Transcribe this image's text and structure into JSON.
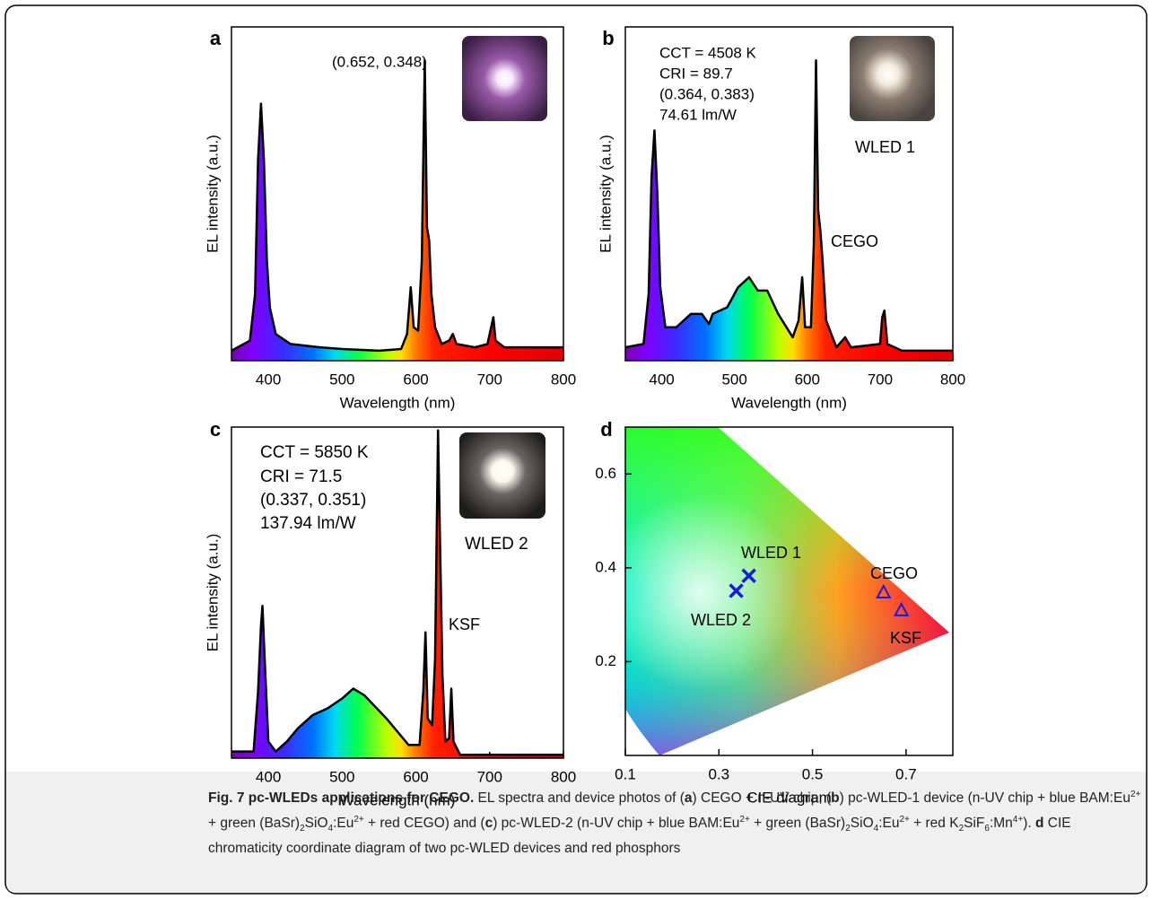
{
  "chart_data": [
    {
      "type": "line",
      "panel": "a",
      "xlabel": "Wavelength (nm)",
      "ylabel": "EL intensity (a.u.)",
      "xlim": [
        350,
        800
      ],
      "xticks": [
        400,
        500,
        600,
        700,
        800
      ],
      "ylim": [
        0,
        1
      ],
      "color": "#000000",
      "annotations": [
        "(0.652, 0.348)"
      ],
      "x": [
        350,
        375,
        382,
        386,
        390,
        394,
        398,
        402,
        410,
        430,
        470,
        500,
        550,
        580,
        588,
        593,
        597,
        603,
        608,
        612,
        615,
        618,
        621,
        626,
        635,
        645,
        650,
        655,
        680,
        697,
        702,
        705,
        708,
        720,
        800
      ],
      "values": [
        0.03,
        0.06,
        0.2,
        0.6,
        0.77,
        0.6,
        0.3,
        0.16,
        0.08,
        0.05,
        0.04,
        0.035,
        0.03,
        0.035,
        0.08,
        0.22,
        0.1,
        0.09,
        0.3,
        0.9,
        0.4,
        0.36,
        0.2,
        0.1,
        0.05,
        0.06,
        0.08,
        0.05,
        0.04,
        0.05,
        0.1,
        0.13,
        0.06,
        0.04,
        0.04
      ]
    },
    {
      "type": "line",
      "panel": "b",
      "xlabel": "Wavelength (nm)",
      "ylabel": "EL intensity (a.u.)",
      "xlim": [
        350,
        800
      ],
      "xticks": [
        400,
        500,
        600,
        700,
        800
      ],
      "ylim": [
        0,
        1
      ],
      "color": "#000000",
      "annotations": [
        "CCT = 4508 K",
        "CRI = 89.7",
        "(0.364, 0.383)",
        "74.61 lm/W",
        "WLED 1",
        "CEGO"
      ],
      "x": [
        350,
        375,
        382,
        386,
        390,
        394,
        398,
        405,
        420,
        440,
        455,
        465,
        470,
        490,
        505,
        520,
        532,
        545,
        560,
        580,
        588,
        593,
        597,
        605,
        609,
        612,
        615,
        618,
        621,
        626,
        640,
        652,
        660,
        700,
        703,
        706,
        710,
        730,
        800
      ],
      "values": [
        0.04,
        0.05,
        0.2,
        0.55,
        0.69,
        0.5,
        0.22,
        0.1,
        0.1,
        0.14,
        0.14,
        0.11,
        0.14,
        0.16,
        0.22,
        0.25,
        0.21,
        0.21,
        0.14,
        0.07,
        0.12,
        0.25,
        0.1,
        0.1,
        0.35,
        0.9,
        0.45,
        0.39,
        0.3,
        0.12,
        0.04,
        0.07,
        0.04,
        0.05,
        0.13,
        0.15,
        0.05,
        0.03,
        0.03
      ]
    },
    {
      "type": "line",
      "panel": "c",
      "xlabel": "Wavelength (nm)",
      "ylabel": "EL intensity (a.u.)",
      "xlim": [
        350,
        800
      ],
      "xticks": [
        400,
        500,
        600,
        700,
        800
      ],
      "ylim": [
        0,
        1
      ],
      "color": "#000000",
      "annotations": [
        "CCT = 5850 K",
        "CRI = 71.5",
        "(0.337, 0.351)",
        "137.94 lm/W",
        "WLED 2",
        "KSF"
      ],
      "x": [
        350,
        380,
        386,
        390,
        392,
        395,
        400,
        410,
        425,
        440,
        460,
        480,
        500,
        515,
        530,
        560,
        590,
        605,
        610,
        613,
        616,
        622,
        626,
        630,
        633,
        636,
        640,
        645,
        648,
        651,
        660,
        800
      ],
      "values": [
        0.02,
        0.02,
        0.2,
        0.4,
        0.46,
        0.3,
        0.05,
        0.02,
        0.05,
        0.09,
        0.13,
        0.15,
        0.18,
        0.21,
        0.19,
        0.12,
        0.04,
        0.04,
        0.2,
        0.38,
        0.12,
        0.1,
        0.3,
        0.99,
        0.62,
        0.25,
        0.05,
        0.06,
        0.21,
        0.05,
        0.01,
        0.01
      ]
    },
    {
      "type": "scatter",
      "panel": "d",
      "xlabel": "CIE diagram",
      "xlim": [
        0.1,
        0.8
      ],
      "xticks": [
        0.1,
        0.3,
        0.5,
        0.7
      ],
      "ylim": [
        0,
        0.7
      ],
      "yticks": [
        0.2,
        0.4,
        0.6
      ],
      "color": "#1a1ae0",
      "points": [
        {
          "name": "WLED 1",
          "x": 0.364,
          "y": 0.383,
          "marker": "x"
        },
        {
          "name": "WLED 2",
          "x": 0.337,
          "y": 0.351,
          "marker": "x"
        },
        {
          "name": "CEGO",
          "x": 0.652,
          "y": 0.348,
          "marker": "triangle"
        },
        {
          "name": "KSF",
          "x": 0.69,
          "y": 0.31,
          "marker": "triangle"
        }
      ]
    }
  ],
  "caption": {
    "runs": [
      {
        "text": "Fig. 7 pc-WLEDs applications for CEGO.",
        "style": "b"
      },
      {
        "text": " EL spectra and device photos of (",
        "style": "n"
      },
      {
        "text": "a",
        "style": "b"
      },
      {
        "text": ") CEGO + n-UV chip, (",
        "style": "n"
      },
      {
        "text": "b",
        "style": "b"
      },
      {
        "text": ") pc-WLED-1 device (n-UV chip + blue BAM:Eu",
        "style": "n"
      },
      {
        "text": "2+",
        "style": "sup"
      },
      {
        "text": " + green (BaSr)",
        "style": "n"
      },
      {
        "text": "2",
        "style": "sub"
      },
      {
        "text": "SiO",
        "style": "n"
      },
      {
        "text": "4",
        "style": "sub"
      },
      {
        "text": ":Eu",
        "style": "n"
      },
      {
        "text": "2+",
        "style": "sup"
      },
      {
        "text": " + red CEGO) and (",
        "style": "n"
      },
      {
        "text": "c",
        "style": "b"
      },
      {
        "text": ") pc-WLED-2 (n-UV chip + blue BAM:Eu",
        "style": "n"
      },
      {
        "text": "2+",
        "style": "sup"
      },
      {
        "text": " + green (BaSr)",
        "style": "n"
      },
      {
        "text": "2",
        "style": "sub"
      },
      {
        "text": "SiO",
        "style": "n"
      },
      {
        "text": "4",
        "style": "sub"
      },
      {
        "text": ":Eu",
        "style": "n"
      },
      {
        "text": "2+",
        "style": "sup"
      },
      {
        "text": " + red K",
        "style": "n"
      },
      {
        "text": "2",
        "style": "sub"
      },
      {
        "text": "SiF",
        "style": "n"
      },
      {
        "text": "6",
        "style": "sub"
      },
      {
        "text": ":Mn",
        "style": "n"
      },
      {
        "text": "4+",
        "style": "sup"
      },
      {
        "text": "). ",
        "style": "n"
      },
      {
        "text": "d",
        "style": "b"
      },
      {
        "text": " CIE chromaticity coordinate diagram of two pc-WLED devices and red phosphors",
        "style": "n"
      }
    ]
  }
}
